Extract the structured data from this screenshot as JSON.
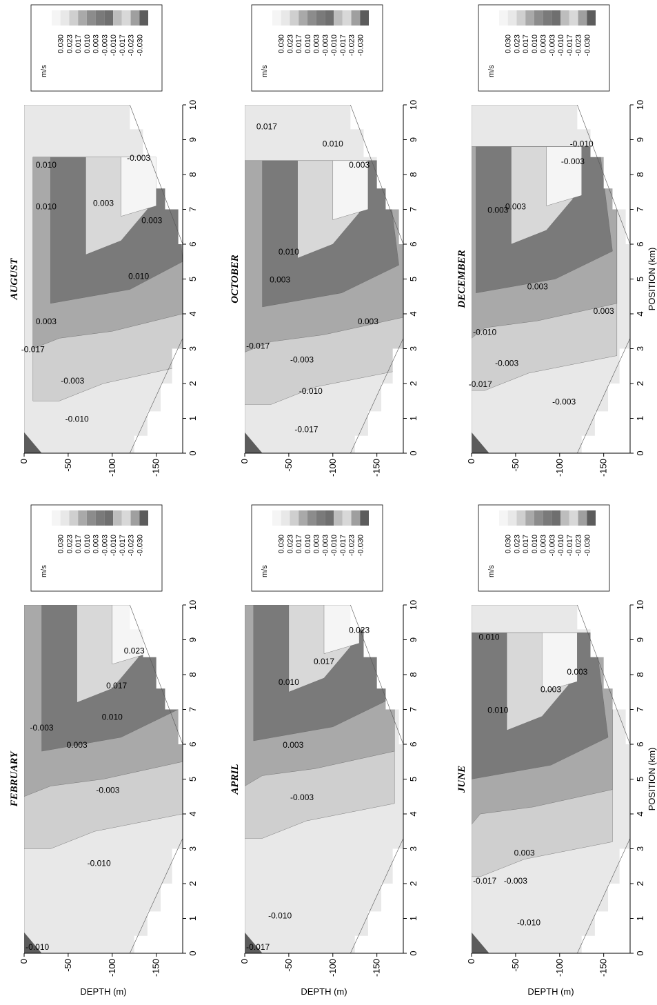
{
  "figure": {
    "depth_label": "DEPTH (m)",
    "position_label": "POSITION (km)",
    "unit": "m/s"
  },
  "colors": {
    "bg": "#ffffff",
    "axis": "#000000",
    "levels": [
      "#f5f5f5",
      "#e8e8e8",
      "#cfcfcf",
      "#a9a9a9",
      "#8c8c8c",
      "#7a7a7a",
      "#6f6f6f",
      "#bdbdbd",
      "#d8d8d8",
      "#9f9f9f",
      "#5c5c5c"
    ]
  },
  "legend_levels": [
    "0.030",
    "0.023",
    "0.017",
    "0.010",
    "0.003",
    "-0.003",
    "-0.010",
    "-0.017",
    "-0.023",
    "-0.030"
  ],
  "chart_data": [
    {
      "type": "heatmap",
      "title": "FEBRUARY",
      "xlabel": "",
      "ylabel": "DEPTH (m)",
      "xlim": [
        0,
        10
      ],
      "ylim": [
        -180,
        0
      ],
      "xticks": [
        "0",
        "1",
        "2",
        "3",
        "4",
        "5",
        "6",
        "7",
        "8",
        "9",
        "10"
      ],
      "yticks": [
        "0",
        "-50",
        "-100",
        "-150"
      ],
      "contour_labels": [
        {
          "text": "-0.010",
          "x": 0.1,
          "y": -15
        },
        {
          "text": "-0.010",
          "x": 2.5,
          "y": -85
        },
        {
          "text": "-0.003",
          "x": 4.6,
          "y": -95
        },
        {
          "text": "0.003",
          "x": 5.9,
          "y": -60
        },
        {
          "text": "-0.003",
          "x": 6.4,
          "y": -20
        },
        {
          "text": "0.010",
          "x": 6.7,
          "y": -100
        },
        {
          "text": "0.017",
          "x": 7.6,
          "y": -105
        },
        {
          "text": "0.023",
          "x": 8.6,
          "y": -125
        }
      ]
    },
    {
      "type": "heatmap",
      "title": "APRIL",
      "xlabel": "",
      "ylabel": "DEPTH (m)",
      "xlim": [
        0,
        10
      ],
      "ylim": [
        -180,
        0
      ],
      "xticks": [
        "0",
        "1",
        "2",
        "3",
        "4",
        "5",
        "6",
        "7",
        "8",
        "9",
        "10"
      ],
      "yticks": [
        "0",
        "-50",
        "-100",
        "-150"
      ],
      "contour_labels": [
        {
          "text": "-0.017",
          "x": 0.1,
          "y": -15
        },
        {
          "text": "-0.010",
          "x": 1.0,
          "y": -40
        },
        {
          "text": "-0.003",
          "x": 4.4,
          "y": -65
        },
        {
          "text": "0.003",
          "x": 5.9,
          "y": -55
        },
        {
          "text": "0.010",
          "x": 7.7,
          "y": -50
        },
        {
          "text": "0.017",
          "x": 8.3,
          "y": -90
        },
        {
          "text": "0.023",
          "x": 9.2,
          "y": -130
        }
      ]
    },
    {
      "type": "heatmap",
      "title": "JUNE",
      "xlabel": "POSITION (km)",
      "ylabel": "DEPTH (m)",
      "xlim": [
        0,
        10
      ],
      "ylim": [
        -180,
        0
      ],
      "xticks": [
        "0",
        "1",
        "2",
        "3",
        "4",
        "5",
        "6",
        "7",
        "8",
        "9",
        "10"
      ],
      "yticks": [
        "0",
        "-50",
        "-100",
        "-150"
      ],
      "contour_labels": [
        {
          "text": "-0.010",
          "x": 0.8,
          "y": -65
        },
        {
          "text": "-0.017",
          "x": 2.0,
          "y": -15
        },
        {
          "text": "-0.003",
          "x": 2.0,
          "y": -50
        },
        {
          "text": "0.003",
          "x": 2.8,
          "y": -60
        },
        {
          "text": "0.010",
          "x": 6.9,
          "y": -30
        },
        {
          "text": "0.003",
          "x": 7.5,
          "y": -90
        },
        {
          "text": "0.003",
          "x": 8.0,
          "y": -120
        },
        {
          "text": "0.010",
          "x": 9.0,
          "y": -20
        }
      ]
    },
    {
      "type": "heatmap",
      "title": "AUGUST",
      "xlabel": "",
      "ylabel": "",
      "xlim": [
        0,
        10
      ],
      "ylim": [
        -180,
        0
      ],
      "xticks": [
        "0",
        "1",
        "2",
        "3",
        "4",
        "5",
        "6",
        "7",
        "8",
        "9",
        "10"
      ],
      "yticks": [
        "0",
        "-50",
        "-100",
        "-150"
      ],
      "contour_labels": [
        {
          "text": "-0.010",
          "x": 0.9,
          "y": -60
        },
        {
          "text": "-0.003",
          "x": 2.0,
          "y": -55
        },
        {
          "text": "-0.017",
          "x": 2.9,
          "y": -10
        },
        {
          "text": "0.003",
          "x": 3.7,
          "y": -25
        },
        {
          "text": "0.010",
          "x": 5.0,
          "y": -130
        },
        {
          "text": "0.003",
          "x": 6.6,
          "y": -145
        },
        {
          "text": "0.010",
          "x": 7.0,
          "y": -25
        },
        {
          "text": "0.003",
          "x": 7.1,
          "y": -90
        },
        {
          "text": "0.010",
          "x": 8.2,
          "y": -25
        },
        {
          "text": "-0.003",
          "x": 8.4,
          "y": -130
        }
      ]
    },
    {
      "type": "heatmap",
      "title": "OCTOBER",
      "xlabel": "",
      "ylabel": "",
      "xlim": [
        0,
        10
      ],
      "ylim": [
        -180,
        0
      ],
      "xticks": [
        "0",
        "1",
        "2",
        "3",
        "4",
        "5",
        "6",
        "7",
        "8",
        "9",
        "10"
      ],
      "yticks": [
        "0",
        "-50",
        "-100",
        "-150"
      ],
      "contour_labels": [
        {
          "text": "-0.017",
          "x": 0.6,
          "y": -70
        },
        {
          "text": "-0.010",
          "x": 1.7,
          "y": -75
        },
        {
          "text": "-0.003",
          "x": 2.6,
          "y": -65
        },
        {
          "text": "-0.017",
          "x": 3.0,
          "y": -15
        },
        {
          "text": "0.003",
          "x": 3.7,
          "y": -140
        },
        {
          "text": "0.003",
          "x": 4.9,
          "y": -40
        },
        {
          "text": "0.010",
          "x": 5.7,
          "y": -50
        },
        {
          "text": "0.003",
          "x": 8.2,
          "y": -130
        },
        {
          "text": "0.010",
          "x": 8.8,
          "y": -100
        },
        {
          "text": "0.017",
          "x": 9.3,
          "y": -25
        }
      ]
    },
    {
      "type": "heatmap",
      "title": "DECEMBER",
      "xlabel": "POSITION (km)",
      "ylabel": "",
      "xlim": [
        0,
        10
      ],
      "ylim": [
        -180,
        0
      ],
      "xticks": [
        "0",
        "1",
        "2",
        "3",
        "4",
        "5",
        "6",
        "7",
        "8",
        "9",
        "10"
      ],
      "yticks": [
        "0",
        "-50",
        "-100",
        "-150"
      ],
      "contour_labels": [
        {
          "text": "-0.003",
          "x": 1.4,
          "y": -105
        },
        {
          "text": "-0.017",
          "x": 1.9,
          "y": -10
        },
        {
          "text": "-0.003",
          "x": 2.5,
          "y": -40
        },
        {
          "text": "-0.010",
          "x": 3.4,
          "y": -15
        },
        {
          "text": "0.003",
          "x": 4.0,
          "y": -150
        },
        {
          "text": "0.003",
          "x": 4.7,
          "y": -75
        },
        {
          "text": "0.003",
          "x": 6.9,
          "y": -30
        },
        {
          "text": "0.003",
          "x": 7.0,
          "y": -50
        },
        {
          "text": "-0.003",
          "x": 8.3,
          "y": -115
        },
        {
          "text": "-0.010",
          "x": 8.8,
          "y": -125
        }
      ]
    }
  ]
}
